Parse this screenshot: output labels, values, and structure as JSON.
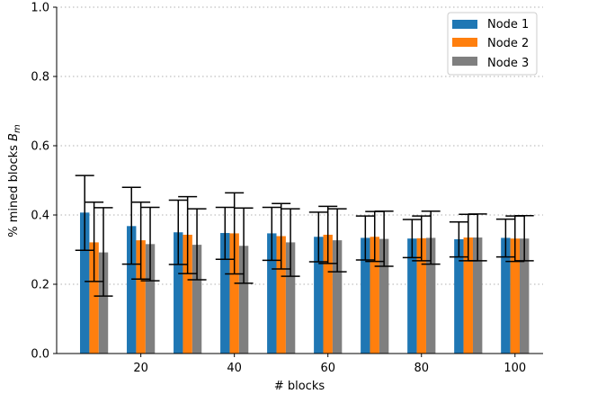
{
  "chart_data": {
    "type": "bar",
    "x": [
      10,
      20,
      30,
      40,
      50,
      60,
      70,
      80,
      90,
      100
    ],
    "xlabel": "# blocks",
    "ylabel_text": "% mined blocks ",
    "ylabel_symbol": "B",
    "ylabel_subscript": "m",
    "ylim": [
      0.0,
      1.0
    ],
    "xlim": [
      2,
      106
    ],
    "x_ticks": [
      20,
      40,
      60,
      80,
      100
    ],
    "y_ticks": [
      0.0,
      0.2,
      0.4,
      0.6,
      0.8,
      1.0
    ],
    "grid": "horizontal dotted",
    "legend_position": "top-right",
    "series": [
      {
        "name": "Node 1",
        "color": "#1f77b4",
        "values": [
          0.407,
          0.368,
          0.35,
          0.348,
          0.347,
          0.337,
          0.334,
          0.332,
          0.33,
          0.334
        ],
        "err_low": [
          0.298,
          0.258,
          0.257,
          0.272,
          0.269,
          0.265,
          0.27,
          0.277,
          0.279,
          0.279
        ],
        "err_high": [
          0.514,
          0.48,
          0.443,
          0.422,
          0.422,
          0.408,
          0.397,
          0.387,
          0.38,
          0.388
        ]
      },
      {
        "name": "Node 2",
        "color": "#ff7f0e",
        "values": [
          0.321,
          0.327,
          0.343,
          0.347,
          0.339,
          0.343,
          0.337,
          0.333,
          0.335,
          0.332
        ],
        "err_low": [
          0.208,
          0.215,
          0.231,
          0.23,
          0.244,
          0.26,
          0.266,
          0.268,
          0.268,
          0.266
        ],
        "err_high": [
          0.437,
          0.437,
          0.453,
          0.464,
          0.433,
          0.425,
          0.41,
          0.397,
          0.402,
          0.397
        ]
      },
      {
        "name": "Node 3",
        "color": "#7f7f7f",
        "values": [
          0.292,
          0.316,
          0.314,
          0.311,
          0.321,
          0.327,
          0.331,
          0.334,
          0.335,
          0.332
        ],
        "err_low": [
          0.166,
          0.21,
          0.213,
          0.203,
          0.223,
          0.236,
          0.252,
          0.258,
          0.268,
          0.268
        ],
        "err_high": [
          0.421,
          0.422,
          0.418,
          0.42,
          0.418,
          0.418,
          0.411,
          0.411,
          0.403,
          0.398
        ]
      }
    ]
  }
}
